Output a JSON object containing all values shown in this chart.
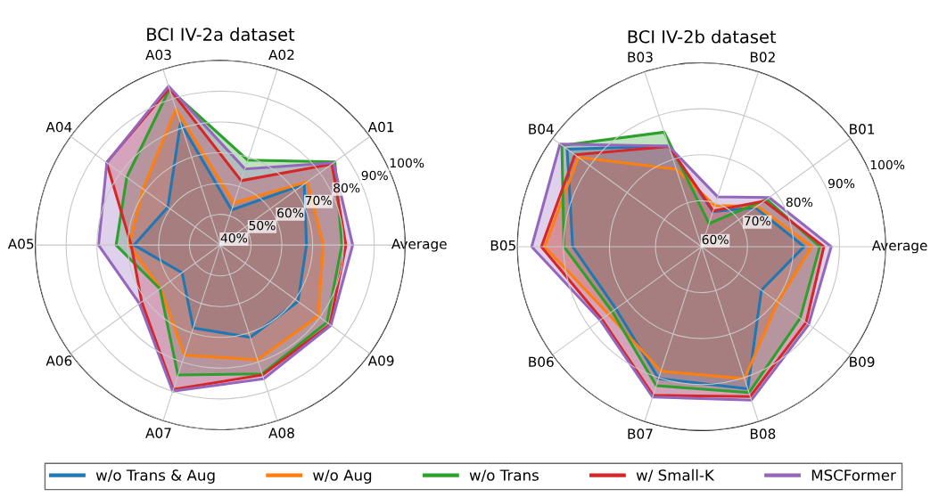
{
  "chart_data": [
    {
      "type": "radar",
      "title": "BCI IV-2a dataset",
      "categories": [
        "A02",
        "A01",
        "Average",
        "A09",
        "A08",
        "A07",
        "A06",
        "A05",
        "A04",
        "A03"
      ],
      "ylim": [
        40,
        100
      ],
      "yticks": [
        {
          "value": 40,
          "label": "40%"
        },
        {
          "value": 50,
          "label": "50%"
        },
        {
          "value": 60,
          "label": "60%"
        },
        {
          "value": 70,
          "label": "70%"
        },
        {
          "value": 80,
          "label": "80%"
        },
        {
          "value": 90,
          "label": "90%"
        },
        {
          "value": 100,
          "label": "100%"
        }
      ],
      "grid": true,
      "legend": "bottom",
      "series": [
        {
          "name": "w/o Trans & Aug",
          "color": "#1f77b4",
          "values": [
            52,
            73.7,
            68,
            71.2,
            71.5,
            68.3,
            55.3,
            68,
            61,
            81.7
          ]
        },
        {
          "name": "w/o Aug",
          "color": "#ff7f0e",
          "values": [
            54.4,
            75,
            73.5,
            79.3,
            79.2,
            77.6,
            64,
            69.6,
            71,
            86.5
          ]
        },
        {
          "name": "w/o Trans",
          "color": "#2ca02c",
          "values": [
            69,
            86,
            79.5,
            82.8,
            84,
            84.4,
            64.2,
            73.8,
            77.5,
            93.3
          ]
        },
        {
          "name": "w/ Small-K",
          "color": "#d62728",
          "values": [
            62,
            84.8,
            80.8,
            84,
            84.4,
            89.3,
            71.5,
            68.9,
            85.6,
            93.5
          ]
        },
        {
          "name": "MSCFormer",
          "color": "#9467bd",
          "values": [
            66,
            85.5,
            83,
            84.4,
            85.7,
            89.9,
            72.4,
            79.5,
            85.5,
            94.3
          ]
        }
      ]
    },
    {
      "type": "radar",
      "title": "BCI IV-2b dataset",
      "categories": [
        "B02",
        "B01",
        "Average",
        "B09",
        "B08",
        "B07",
        "B06",
        "B05",
        "B04",
        "B03"
      ],
      "ylim": [
        60,
        100
      ],
      "yticks": [
        {
          "value": 60,
          "label": "60%"
        },
        {
          "value": 70,
          "label": "70%"
        },
        {
          "value": 80,
          "label": "80%"
        },
        {
          "value": 90,
          "label": "90%"
        },
        {
          "value": 100,
          "label": "100%"
        }
      ],
      "grid": true,
      "legend": "bottom",
      "series": [
        {
          "name": "w/o Trans & Aug",
          "color": "#1f77b4",
          "values": [
            68,
            74.5,
            82.3,
            76.1,
            92.5,
            90.2,
            83,
            88,
            96.1,
            83
          ]
        },
        {
          "name": "w/o Aug",
          "color": "#ff7f0e",
          "values": [
            69.4,
            75,
            84,
            80.5,
            90.2,
            88.5,
            85,
            94.1,
            93.1,
            77.7
          ]
        },
        {
          "name": "w/o Trans",
          "color": "#2ca02c",
          "values": [
            65.3,
            77.5,
            85.7,
            86.5,
            93.4,
            91.8,
            84,
            89.9,
            97.5,
            86.2
          ]
        },
        {
          "name": "w/ Small-K",
          "color": "#d62728",
          "values": [
            68.2,
            76.9,
            86.6,
            88.1,
            94.3,
            94,
            86.8,
            94.8,
            94,
            82.9
          ]
        },
        {
          "name": "MSCFormer",
          "color": "#9467bd",
          "values": [
            71.4,
            78.2,
            88.2,
            88.8,
            95.1,
            94.4,
            87.2,
            96.9,
            98,
            83
          ]
        }
      ]
    }
  ]
}
